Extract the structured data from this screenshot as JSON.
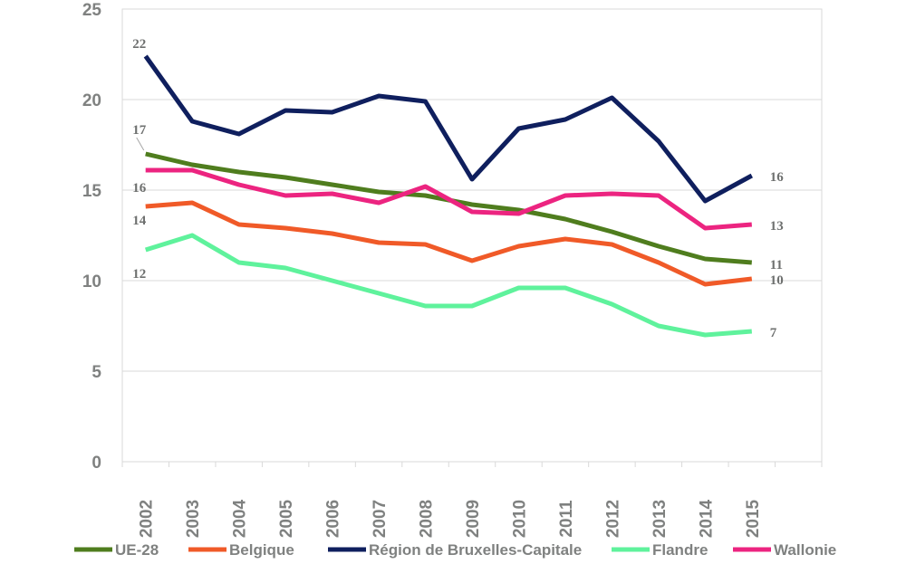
{
  "chart_data": {
    "type": "line",
    "title": "",
    "xlabel": "",
    "ylabel": "",
    "ylim": [
      0,
      25
    ],
    "yticks": [
      "0",
      "5",
      "10",
      "15",
      "20",
      "25"
    ],
    "categories": [
      "2002",
      "2003",
      "2004",
      "2005",
      "2006",
      "2007",
      "2008",
      "2009",
      "2010",
      "2011",
      "2012",
      "2013",
      "2014",
      "2015"
    ],
    "grid": "horizontal",
    "legend_position": "bottom",
    "series": [
      {
        "name": "UE-28",
        "color": "#4f7d1e",
        "values": [
          17.0,
          16.4,
          16.0,
          15.7,
          15.3,
          14.9,
          14.7,
          14.2,
          13.9,
          13.4,
          12.7,
          11.9,
          11.2,
          11.0
        ],
        "labels": [
          {
            "index": 0,
            "text": "17"
          },
          {
            "index": 13,
            "text": "11"
          }
        ]
      },
      {
        "name": "Belgique",
        "color": "#f05a28",
        "values": [
          14.1,
          14.3,
          13.1,
          12.9,
          12.6,
          12.1,
          12.0,
          11.1,
          11.9,
          12.3,
          12.0,
          11.0,
          9.8,
          10.1
        ],
        "labels": [
          {
            "index": 0,
            "text": "14"
          },
          {
            "index": 13,
            "text": "10"
          }
        ]
      },
      {
        "name": "Région de Bruxelles-Capitale",
        "color": "#0f1f5e",
        "values": [
          22.4,
          18.8,
          18.1,
          19.4,
          19.3,
          20.2,
          19.9,
          15.6,
          18.4,
          18.9,
          20.1,
          17.7,
          14.4,
          15.8
        ],
        "labels": [
          {
            "index": 0,
            "text": "22"
          },
          {
            "index": 13,
            "text": "16"
          }
        ]
      },
      {
        "name": "Flandre",
        "color": "#5ff29c",
        "values": [
          11.7,
          12.5,
          11.0,
          10.7,
          10.0,
          9.3,
          8.6,
          8.6,
          9.6,
          9.6,
          8.7,
          7.5,
          7.0,
          7.2
        ],
        "labels": [
          {
            "index": 0,
            "text": "12"
          },
          {
            "index": 13,
            "text": "7"
          }
        ]
      },
      {
        "name": "Wallonie",
        "color": "#ec2480",
        "values": [
          16.1,
          16.1,
          15.3,
          14.7,
          14.8,
          14.3,
          15.2,
          13.8,
          13.7,
          14.7,
          14.8,
          14.7,
          12.9,
          13.1
        ],
        "labels": [
          {
            "index": 0,
            "text": "16"
          },
          {
            "index": 13,
            "text": "13"
          }
        ]
      }
    ]
  }
}
